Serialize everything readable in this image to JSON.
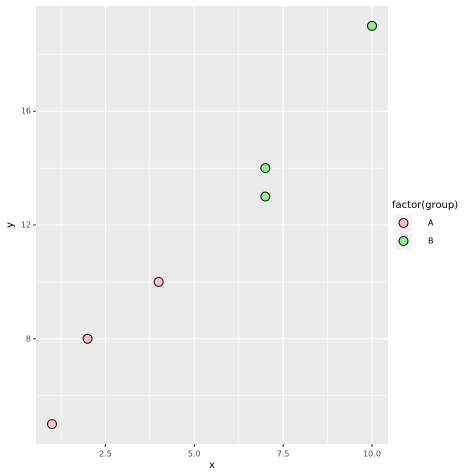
{
  "chart_data": {
    "type": "scatter",
    "x_label": "x",
    "y_label": "y",
    "legend_title": "factor(group)",
    "legend_position": "right",
    "series": [
      {
        "name": "A",
        "color": "#FFC0CB",
        "x": [
          1,
          2,
          4
        ],
        "values": [
          5,
          8,
          10
        ]
      },
      {
        "name": "B",
        "color": "#90EE90",
        "x": [
          7,
          7,
          10
        ],
        "values": [
          13,
          14,
          19
        ]
      }
    ],
    "xlim": [
      0.55,
      10.45
    ],
    "ylim": [
      4.3,
      19.7
    ],
    "xticks": [
      2.5,
      {
        "value": 5,
        "label": "5.0"
      },
      7.5,
      {
        "value": 10,
        "label": "10.0"
      }
    ],
    "yticks": [
      8,
      12,
      16
    ],
    "xminor": [
      1.25,
      3.75,
      6.25,
      8.75
    ],
    "yminor": [
      6,
      10,
      14,
      18
    ],
    "grid": true
  }
}
